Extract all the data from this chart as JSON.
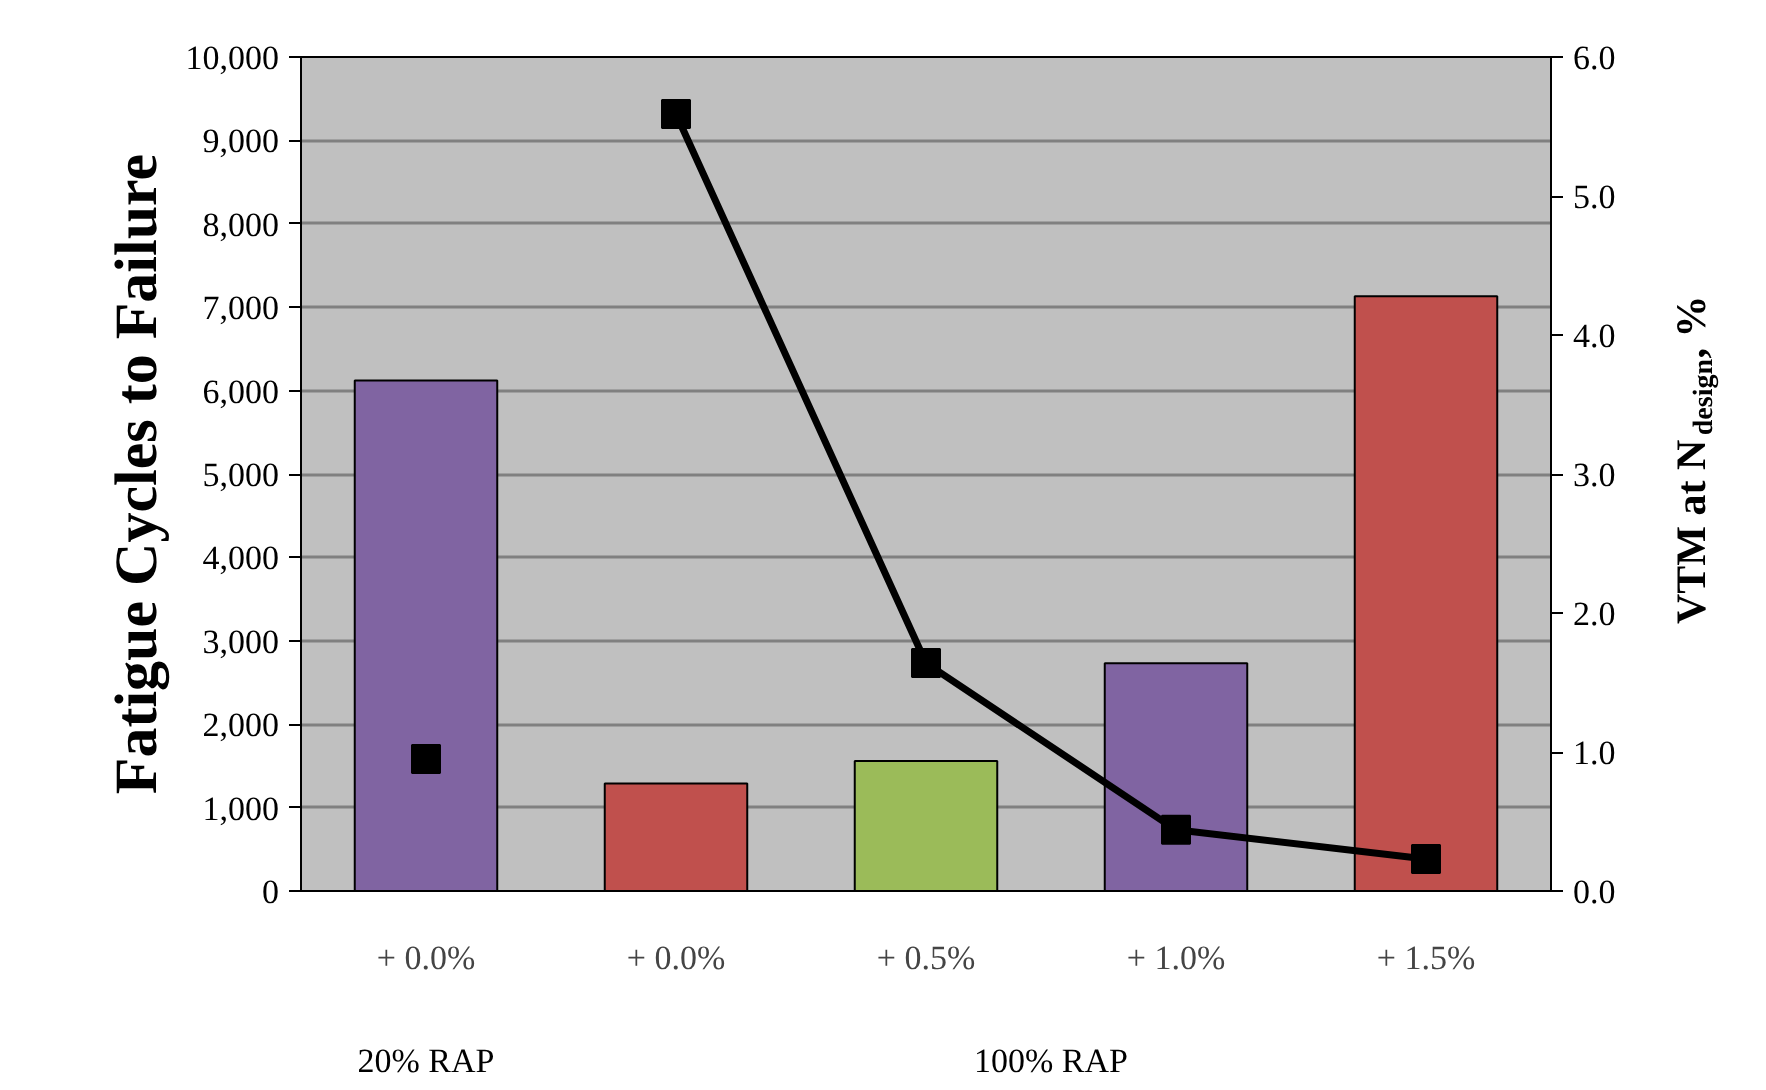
{
  "chart_data": {
    "type": "bar",
    "categories": [
      "+ 0.0%",
      "+ 0.0%",
      "+ 0.5%",
      "+ 1.0%",
      "+ 1.5%"
    ],
    "ylabel": "Fatigue Cycles to Failure",
    "y2label": "VTM at N$_{design}$, %",
    "series": [
      {
        "colors": [
          "#8064a2",
          "#c0504d",
          "#9bbb59",
          "#8064a2",
          "#c0504d"
        ],
        "values": [
          6120,
          1290,
          1560,
          2730,
          7130
        ]
      },
      {
        "type": "scatter",
        "axis": "y2",
        "color": "#000000",
        "values": [
          0.95,
          null,
          null,
          null,
          null
        ]
      },
      {
        "type": "line",
        "axis": "y2",
        "color": "#000000",
        "values": [
          null,
          5.59,
          1.64,
          0.44,
          0.23
        ]
      }
    ],
    "marker": "square",
    "line_style": "solid",
    "ylim": [
      0,
      10000
    ],
    "yticks": [
      {
        "value": 0,
        "label": "0"
      },
      {
        "value": 1000,
        "label": "1,000"
      },
      {
        "value": 2000,
        "label": "2,000"
      },
      {
        "value": 3000,
        "label": "3,000"
      },
      {
        "value": 4000,
        "label": "4,000"
      },
      {
        "value": 5000,
        "label": "5,000"
      },
      {
        "value": 6000,
        "label": "6,000"
      },
      {
        "value": 7000,
        "label": "7,000"
      },
      {
        "value": 8000,
        "label": "8,000"
      },
      {
        "value": 9000,
        "label": "9,000"
      },
      {
        "value": 10000,
        "label": "10,000"
      }
    ],
    "y2lim": [
      0,
      6
    ],
    "y2ticks": [
      {
        "value": 0,
        "label": "0.0"
      },
      {
        "value": 1,
        "label": "1.0"
      },
      {
        "value": 2,
        "label": "2.0"
      },
      {
        "value": 3,
        "label": "3.0"
      },
      {
        "value": 4,
        "label": "4.0"
      },
      {
        "value": 5,
        "label": "5.0"
      },
      {
        "value": 6,
        "label": "6.0"
      }
    ],
    "grid": "y",
    "annotations": [
      "20% RAP",
      "100% RAP"
    ]
  }
}
